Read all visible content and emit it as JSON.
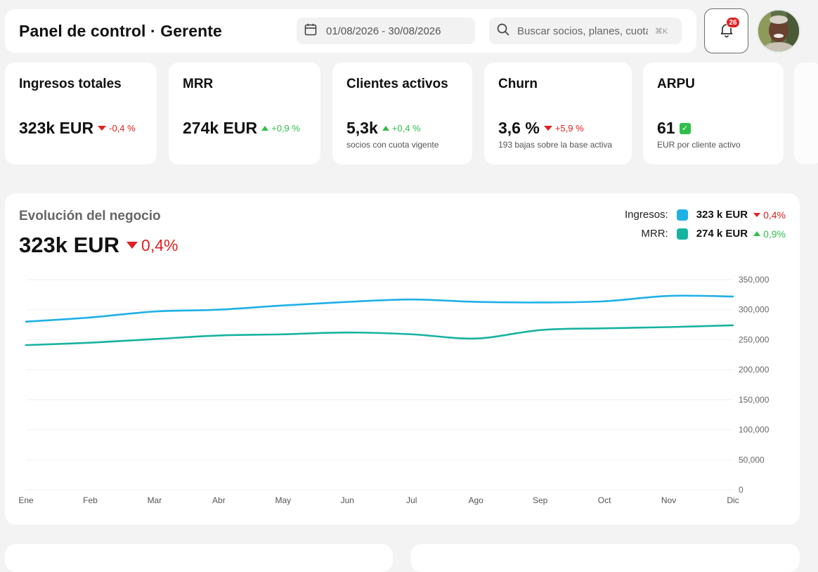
{
  "header": {
    "title": "Panel de control · Gerente",
    "date_range": "01/08/2026 - 30/08/2026",
    "search": {
      "placeholder": "Buscar socios, planes, cuotas...",
      "shortcut": "⌘K"
    },
    "notifications_count": "26"
  },
  "kpis": [
    {
      "title": "Ingresos totales",
      "value": "323k EUR",
      "delta": "-0,4 %",
      "direction": "down",
      "subtitle": ""
    },
    {
      "title": "MRR",
      "value": "274k EUR",
      "delta": "+0,9 %",
      "direction": "up",
      "subtitle": ""
    },
    {
      "title": "Clientes activos",
      "value": "5,3k",
      "delta": "+0,4 %",
      "direction": "up",
      "subtitle": "socios con cuota vigente"
    },
    {
      "title": "Churn",
      "value": "3,6 %",
      "delta": "+5,9 %",
      "direction": "down",
      "subtitle": "193 bajas sobre la base activa"
    },
    {
      "title": "ARPU",
      "value": "61",
      "delta": "",
      "direction": "check",
      "subtitle": "EUR por cliente activo"
    }
  ],
  "chart_panel": {
    "heading": "Evolución del negocio",
    "big_value": "323k EUR",
    "big_delta": "0,4%",
    "legend": [
      {
        "name": "Ingresos:",
        "value": "323 k EUR",
        "delta": "0,4%",
        "direction": "down",
        "color": "#1fb0e6"
      },
      {
        "name": "MRR:",
        "value": "274 k EUR",
        "delta": "0,9%",
        "direction": "up",
        "color": "#16b3a0"
      }
    ]
  },
  "chart_data": {
    "type": "line",
    "categories": [
      "Ene",
      "Feb",
      "Mar",
      "Abr",
      "May",
      "Jun",
      "Jul",
      "Ago",
      "Sep",
      "Oct",
      "Nov",
      "Dic"
    ],
    "series": [
      {
        "name": "Ingresos",
        "color": "#1fb0e6",
        "values": [
          280000,
          287000,
          297000,
          300000,
          307000,
          313000,
          317000,
          313000,
          312000,
          314000,
          323000,
          322000
        ]
      },
      {
        "name": "MRR",
        "color": "#16b3a0",
        "values": [
          241000,
          245000,
          251000,
          257000,
          259000,
          262000,
          259000,
          252000,
          266000,
          269000,
          271000,
          274000
        ]
      }
    ],
    "yticks": [
      "350,000",
      "300,000",
      "250,000",
      "200,000",
      "150,000",
      "100,000",
      "50,000",
      "0"
    ],
    "ylim": [
      0,
      350000
    ],
    "grid": true
  }
}
